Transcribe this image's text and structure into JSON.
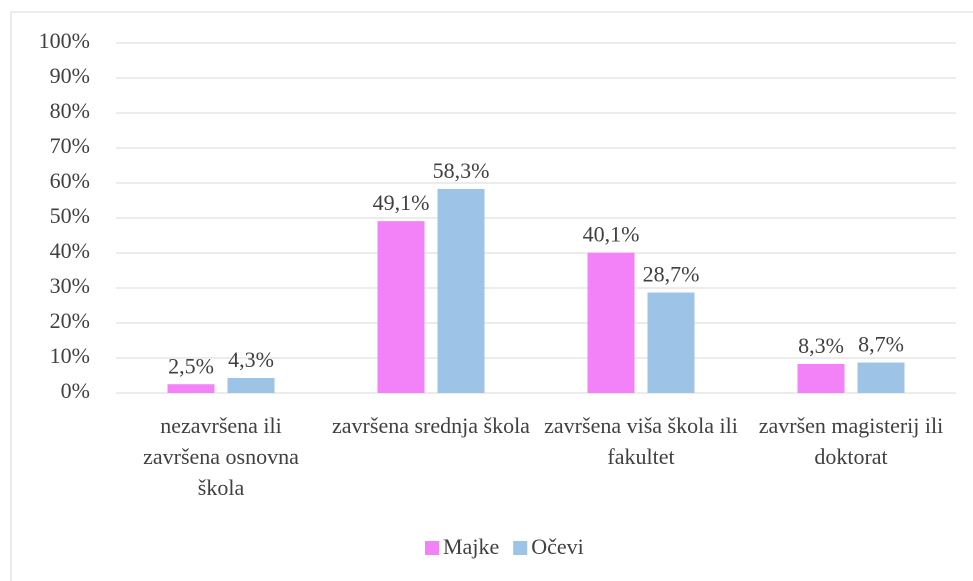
{
  "chart_data": {
    "type": "bar",
    "categories": [
      "nezavršena ili završena osnovna škola",
      "završena srednja škola",
      "završena viša škola ili fakultet",
      "završen magisterij ili doktorat"
    ],
    "series": [
      {
        "name": "Majke",
        "color": "#f381f7",
        "values": [
          2.5,
          49.1,
          40.1,
          8.3
        ],
        "value_labels": [
          "2,5%",
          "49,1%",
          "40,1%",
          "8,3%"
        ]
      },
      {
        "name": "Očevi",
        "color": "#9dc3e6",
        "values": [
          4.3,
          58.3,
          28.7,
          8.7
        ],
        "value_labels": [
          "4,3%",
          "58,3%",
          "28,7%",
          "8,7%"
        ]
      }
    ],
    "ylim": [
      0,
      100
    ],
    "yticks": [
      {
        "value": 0,
        "label": "0%"
      },
      {
        "value": 10,
        "label": "10%"
      },
      {
        "value": 20,
        "label": "20%"
      },
      {
        "value": 30,
        "label": "30%"
      },
      {
        "value": 40,
        "label": "40%"
      },
      {
        "value": 50,
        "label": "50%"
      },
      {
        "value": 60,
        "label": "60%"
      },
      {
        "value": 70,
        "label": "70%"
      },
      {
        "value": 80,
        "label": "80%"
      },
      {
        "value": 90,
        "label": "90%"
      },
      {
        "value": 100,
        "label": "100%"
      }
    ],
    "grid": true,
    "legend": "bottom"
  }
}
